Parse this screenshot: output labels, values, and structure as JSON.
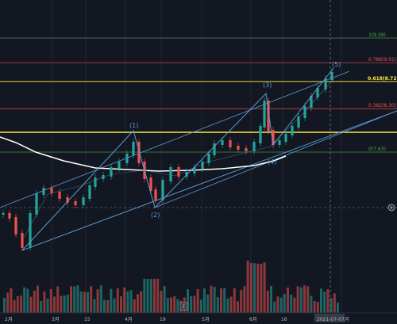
{
  "chart_data": {
    "type": "candlestick",
    "x_axis": {
      "tick_labels": [
        "2月",
        "3月",
        "15",
        "4月",
        "19",
        "5月",
        "6月",
        "16",
        "8月"
      ],
      "cursor_label": "2021-07-07",
      "marker_badge": "E"
    },
    "fib_levels": [
      {
        "label": "1(9.39)",
        "price": 9.39,
        "color": "#4caf50"
      },
      {
        "label": "0.786(9.01)",
        "price": 9.01,
        "color": "#ef5350"
      },
      {
        "label": "0.618(8.72)",
        "price": 8.72,
        "color": "#ffeb3b",
        "emphasis": true
      },
      {
        "label": "0.382(8.30)",
        "price": 8.3,
        "color": "#ef5350"
      },
      {
        "label": "0(7.63)",
        "price": 7.63,
        "color": "#4caf50"
      }
    ],
    "wave_labels": [
      "(1)",
      "(2)",
      "(3)",
      "(4)",
      "(5)"
    ],
    "colors": {
      "background": "#131722",
      "up_candle": "#26a69a",
      "down_candle": "#ef5350",
      "trend_line": "#5b9bd5",
      "moving_average": "#ffffff",
      "highlight_line": "#ffeb3b"
    },
    "icons": [
      "plus-circle-icon"
    ]
  }
}
